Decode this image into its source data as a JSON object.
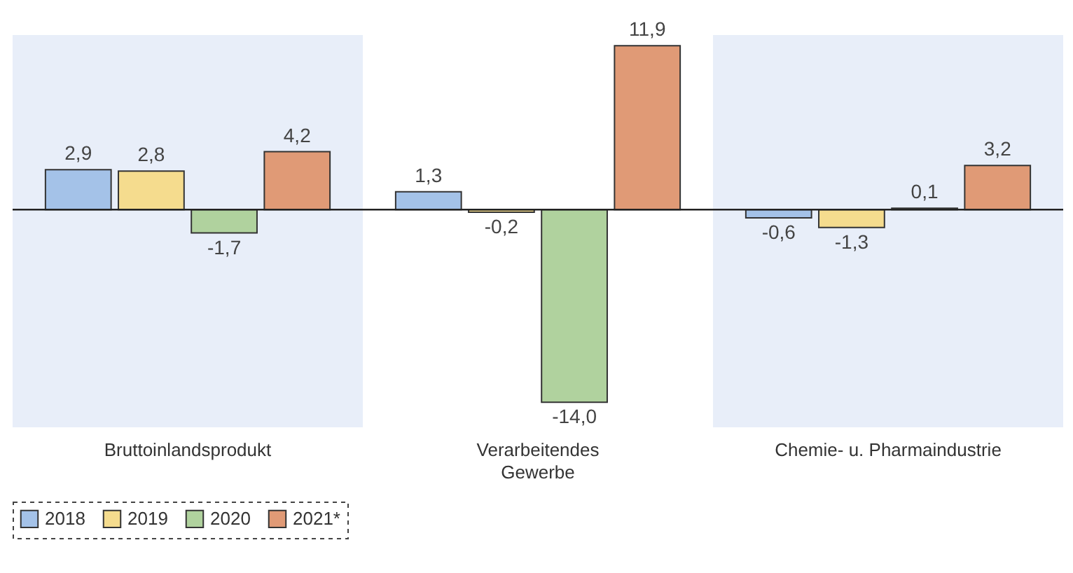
{
  "chart_data": {
    "type": "bar",
    "categories": [
      "Bruttoinlandsprodukt",
      "Verarbeitendes\nGewerbe",
      "Chemie- u. Pharmaindustrie"
    ],
    "series": [
      {
        "name": "2018",
        "color": "#a4c2e8",
        "values": [
          2.9,
          1.3,
          -0.6
        ],
        "value_labels": [
          "2,9",
          "1,3",
          "-0,6"
        ]
      },
      {
        "name": "2019",
        "color": "#f5dc8e",
        "values": [
          2.8,
          -0.2,
          -1.3
        ],
        "value_labels": [
          "2,8",
          "-0,2",
          "-1,3"
        ]
      },
      {
        "name": "2020",
        "color": "#b0d29e",
        "values": [
          -1.7,
          -14.0,
          0.1
        ],
        "value_labels": [
          "-1,7",
          "-14,0",
          "0,1"
        ]
      },
      {
        "name": "2021*",
        "color": "#e09a76",
        "values": [
          4.2,
          11.9,
          3.2
        ],
        "value_labels": [
          "4,2",
          "11,9",
          "3,2"
        ]
      }
    ],
    "bands": [
      {
        "axis": "x",
        "from": "Bruttoinlandsprodukt",
        "to": "Bruttoinlandsprodukt",
        "color": "#e8eef9"
      },
      {
        "axis": "x",
        "from": "Chemie- u. Pharmaindustrie",
        "to": "Chemie- u. Pharmaindustrie",
        "color": "#e8eef9"
      }
    ],
    "legend": "bottom"
  }
}
